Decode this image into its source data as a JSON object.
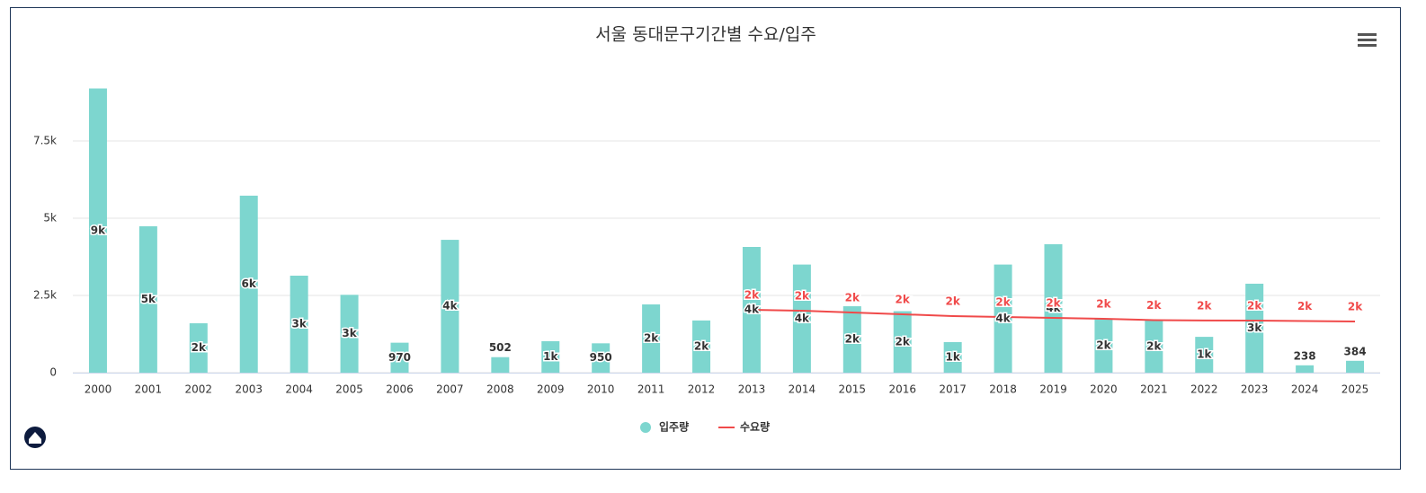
{
  "chart_data": {
    "type": "bar_line",
    "title": "서울 동대문구기간별 수요/입주",
    "categories": [
      "2000",
      "2001",
      "2002",
      "2003",
      "2004",
      "2005",
      "2006",
      "2007",
      "2008",
      "2009",
      "2010",
      "2011",
      "2012",
      "2013",
      "2014",
      "2015",
      "2016",
      "2017",
      "2018",
      "2019",
      "2020",
      "2021",
      "2022",
      "2023",
      "2024",
      "2025"
    ],
    "series": [
      {
        "name": "입주량",
        "type": "bar",
        "color": "#7dd6cf",
        "values": [
          9200,
          4740,
          1600,
          5730,
          3140,
          2520,
          970,
          4300,
          502,
          1020,
          950,
          2210,
          1690,
          4070,
          3500,
          2150,
          1990,
          990,
          3500,
          4160,
          1740,
          1690,
          1160,
          2880,
          238,
          384
        ],
        "value_labels": [
          "9k",
          "5k",
          "2k",
          "6k",
          "3k",
          "3k",
          "970",
          "4k",
          "502",
          "1k",
          "950",
          "2k",
          "2k",
          "4k",
          "4k",
          "2k",
          "2k",
          "1k",
          "4k",
          "4k",
          "2k",
          "2k",
          "1k",
          "3k",
          "238",
          "384"
        ]
      },
      {
        "name": "수요량",
        "type": "line",
        "color": "#f04a4a",
        "values": [
          null,
          null,
          null,
          null,
          null,
          null,
          null,
          null,
          null,
          null,
          null,
          null,
          null,
          2035,
          2006,
          1948,
          1890,
          1831,
          1802,
          1773,
          1744,
          1700,
          1690,
          1686,
          1671,
          1657
        ],
        "value_labels": [
          null,
          null,
          null,
          null,
          null,
          null,
          null,
          null,
          null,
          null,
          null,
          null,
          null,
          "2k",
          "2k",
          "2k",
          "2k",
          "2k",
          "2k",
          "2k",
          "2k",
          "2k",
          "2k",
          "2k",
          "2k",
          "2k"
        ]
      }
    ],
    "ylim": [
      0,
      10000
    ],
    "yticks": [
      0,
      {
        "value": 2500,
        "label": "2.5k"
      },
      {
        "value": 5000,
        "label": "5k"
      },
      {
        "value": 7500,
        "label": "7.5k"
      }
    ],
    "grid": true,
    "legend": "bottom"
  }
}
